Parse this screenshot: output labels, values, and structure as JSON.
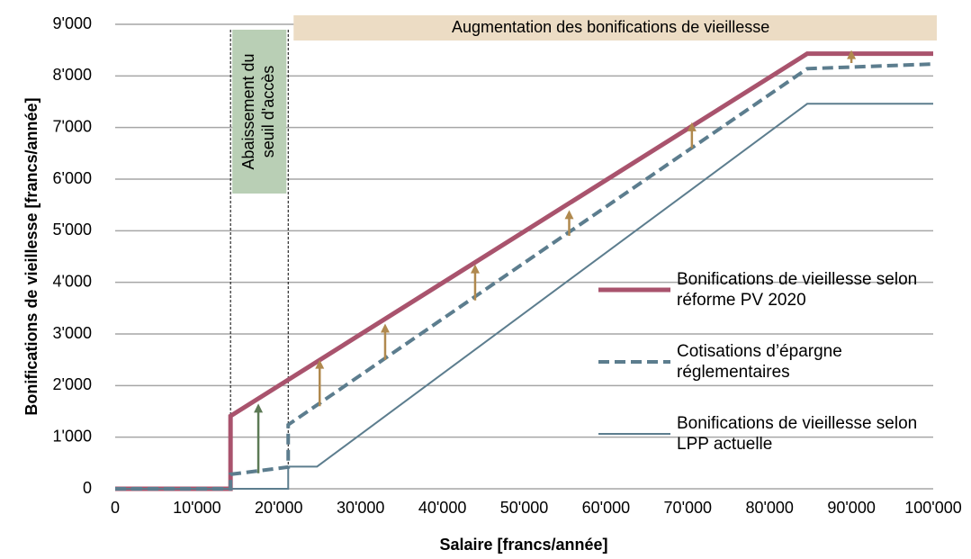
{
  "chart_data": {
    "type": "line",
    "xlabel": "Salaire [francs/année]",
    "ylabel": "Bonifications de vieillesse [francs/année]",
    "xlim": [
      0,
      100000
    ],
    "ylim": [
      0,
      9000
    ],
    "xticks": [
      0,
      {
        "value": 10000,
        "label": "10'000"
      },
      {
        "value": 20000,
        "label": "20'000"
      },
      {
        "value": 30000,
        "label": "30'000"
      },
      {
        "value": 40000,
        "label": "40'000"
      },
      {
        "value": 50000,
        "label": "50'000"
      },
      {
        "value": 60000,
        "label": "60'000"
      },
      {
        "value": 70000,
        "label": "70'000"
      },
      {
        "value": 80000,
        "label": "80'000"
      },
      {
        "value": 90000,
        "label": "90'000"
      },
      {
        "value": 100000,
        "label": "100'000"
      }
    ],
    "yticks": [
      0,
      {
        "value": 1000,
        "label": "1'000"
      },
      {
        "value": 2000,
        "label": "2'000"
      },
      {
        "value": 3000,
        "label": "3'000"
      },
      {
        "value": 4000,
        "label": "4'000"
      },
      {
        "value": 5000,
        "label": "5'000"
      },
      {
        "value": 6000,
        "label": "6'000"
      },
      {
        "value": 7000,
        "label": "7'000"
      },
      {
        "value": 8000,
        "label": "8'000"
      },
      {
        "value": 9000,
        "label": "9'000"
      }
    ],
    "grid": true,
    "legend": "right",
    "series": [
      {
        "name": "Bonifications de vieillesse selon réforme PV 2020",
        "color": "#a9536d",
        "width": 5,
        "dash": false,
        "x": [
          0,
          14100,
          14100,
          84600,
          100000
        ],
        "values": [
          0,
          0,
          1410,
          8430,
          8430
        ]
      },
      {
        "name": "Cotisations d’épargne réglementaires",
        "color": "#5c7d8e",
        "width": 4,
        "dash": true,
        "x": [
          0,
          14100,
          14100,
          21150,
          21150,
          84600,
          100000
        ],
        "values": [
          0,
          0,
          280,
          420,
          1240,
          8140,
          8230
        ]
      },
      {
        "name": "Bonifications de vieillesse selon LPP actuelle",
        "color": "#5c7d8e",
        "width": 2,
        "dash": false,
        "x": [
          0,
          21150,
          21150,
          24675,
          84600,
          100000
        ],
        "values": [
          0,
          0,
          430,
          430,
          7460,
          7460
        ]
      }
    ],
    "regions": [
      {
        "label_lines": [
          "Abaissement du",
          "seuil d'accès"
        ],
        "x": [
          14100,
          21150
        ],
        "color": "#b9cfb5"
      },
      {
        "label_lines": [
          "Augmentation des bonifications de vieillesse"
        ],
        "x": [
          21150,
          100000
        ],
        "color": "#ecdcc4"
      }
    ],
    "arrows": [
      {
        "x": 17500,
        "from": 300,
        "to": 1650,
        "color": "#5c7a55"
      },
      {
        "x": 25000,
        "from": 1600,
        "to": 2500,
        "color": "#b0894e"
      },
      {
        "x": 33000,
        "from": 2500,
        "to": 3200,
        "color": "#b0894e"
      },
      {
        "x": 44000,
        "from": 3650,
        "to": 4350,
        "color": "#b0894e"
      },
      {
        "x": 55500,
        "from": 4900,
        "to": 5400,
        "color": "#b0894e"
      },
      {
        "x": 70500,
        "from": 6600,
        "to": 7100,
        "color": "#b0894e"
      },
      {
        "x": 90000,
        "from": 8250,
        "to": 8500,
        "color": "#b0894e"
      }
    ]
  }
}
